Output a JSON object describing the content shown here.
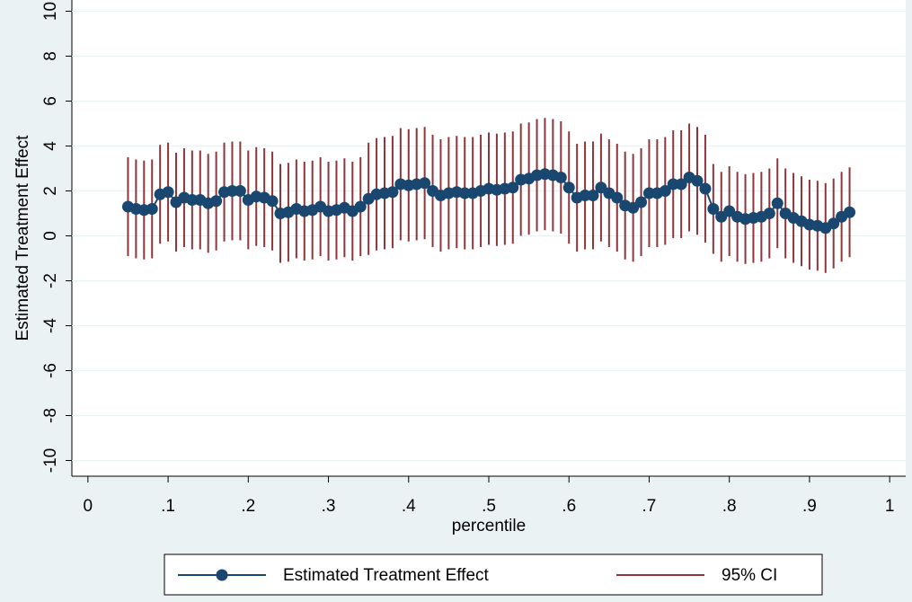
{
  "chart_data": {
    "type": "line-ci",
    "x_label": "percentile",
    "y_label": "Estimated Treatment Effect",
    "x": [
      0.05,
      0.06,
      0.07,
      0.08,
      0.09,
      0.1,
      0.11,
      0.12,
      0.13,
      0.14,
      0.15,
      0.16,
      0.17,
      0.18,
      0.19,
      0.2,
      0.21,
      0.22,
      0.23,
      0.24,
      0.25,
      0.26,
      0.27,
      0.28,
      0.29,
      0.3,
      0.31,
      0.32,
      0.33,
      0.34,
      0.35,
      0.36,
      0.37,
      0.38,
      0.39,
      0.4,
      0.41,
      0.42,
      0.43,
      0.44,
      0.45,
      0.46,
      0.47,
      0.48,
      0.49,
      0.5,
      0.51,
      0.52,
      0.53,
      0.54,
      0.55,
      0.56,
      0.57,
      0.58,
      0.59,
      0.6,
      0.61,
      0.62,
      0.63,
      0.64,
      0.65,
      0.66,
      0.67,
      0.68,
      0.69,
      0.7,
      0.71,
      0.72,
      0.73,
      0.74,
      0.75,
      0.76,
      0.77,
      0.78,
      0.79,
      0.8,
      0.81,
      0.82,
      0.83,
      0.84,
      0.85,
      0.86,
      0.87,
      0.88,
      0.89,
      0.9,
      0.91,
      0.92,
      0.93,
      0.94,
      0.95
    ],
    "series": [
      {
        "name": "Estimated Treatment Effect",
        "color": "#1a476f",
        "values": [
          1.3,
          1.2,
          1.15,
          1.2,
          1.85,
          1.95,
          1.5,
          1.7,
          1.6,
          1.6,
          1.45,
          1.55,
          1.95,
          2.0,
          2.0,
          1.6,
          1.75,
          1.7,
          1.55,
          1.0,
          1.05,
          1.2,
          1.1,
          1.15,
          1.3,
          1.1,
          1.15,
          1.25,
          1.1,
          1.3,
          1.65,
          1.85,
          1.9,
          1.95,
          2.3,
          2.25,
          2.3,
          2.35,
          2.0,
          1.8,
          1.9,
          1.95,
          1.9,
          1.9,
          2.0,
          2.1,
          2.05,
          2.1,
          2.15,
          2.5,
          2.55,
          2.7,
          2.75,
          2.7,
          2.6,
          2.15,
          1.7,
          1.8,
          1.8,
          2.15,
          1.9,
          1.7,
          1.35,
          1.25,
          1.5,
          1.9,
          1.9,
          2.0,
          2.3,
          2.3,
          2.6,
          2.45,
          2.1,
          1.2,
          0.85,
          1.1,
          0.85,
          0.75,
          0.8,
          0.85,
          1.0,
          1.45,
          1.0,
          0.8,
          0.65,
          0.5,
          0.45,
          0.35,
          0.55,
          0.85,
          1.05
        ]
      },
      {
        "name": "95% CI",
        "color": "#90353b",
        "lower": [
          -0.9,
          -1.0,
          -1.05,
          -1.0,
          -0.35,
          -0.25,
          -0.7,
          -0.5,
          -0.6,
          -0.6,
          -0.75,
          -0.65,
          -0.25,
          -0.2,
          -0.2,
          -0.6,
          -0.45,
          -0.5,
          -0.65,
          -1.2,
          -1.15,
          -1.0,
          -1.1,
          -1.05,
          -0.9,
          -1.1,
          -1.05,
          -0.95,
          -1.1,
          -0.9,
          -0.85,
          -0.65,
          -0.6,
          -0.55,
          -0.2,
          -0.25,
          -0.2,
          -0.15,
          -0.5,
          -0.7,
          -0.6,
          -0.55,
          -0.6,
          -0.6,
          -0.5,
          -0.4,
          -0.45,
          -0.4,
          -0.35,
          0.0,
          0.05,
          0.2,
          0.25,
          0.2,
          0.1,
          -0.35,
          -0.7,
          -0.6,
          -0.6,
          -0.25,
          -0.5,
          -0.7,
          -1.05,
          -1.15,
          -0.9,
          -0.5,
          -0.5,
          -0.4,
          -0.1,
          -0.1,
          0.2,
          0.05,
          -0.3,
          -0.8,
          -1.15,
          -0.9,
          -1.15,
          -1.25,
          -1.2,
          -1.15,
          -1.0,
          -0.55,
          -1.0,
          -1.2,
          -1.35,
          -1.5,
          -1.55,
          -1.65,
          -1.45,
          -1.15,
          -0.95
        ],
        "upper": [
          3.5,
          3.4,
          3.35,
          3.4,
          4.05,
          4.15,
          3.7,
          3.9,
          3.8,
          3.8,
          3.65,
          3.75,
          4.15,
          4.2,
          4.2,
          3.8,
          3.95,
          3.9,
          3.75,
          3.2,
          3.25,
          3.4,
          3.3,
          3.35,
          3.5,
          3.3,
          3.35,
          3.45,
          3.3,
          3.5,
          4.15,
          4.35,
          4.4,
          4.45,
          4.8,
          4.75,
          4.8,
          4.85,
          4.5,
          4.3,
          4.4,
          4.45,
          4.4,
          4.4,
          4.5,
          4.6,
          4.55,
          4.6,
          4.65,
          5.0,
          5.05,
          5.2,
          5.25,
          5.2,
          5.1,
          4.65,
          4.1,
          4.2,
          4.2,
          4.55,
          4.3,
          4.1,
          3.75,
          3.65,
          3.9,
          4.3,
          4.3,
          4.4,
          4.7,
          4.7,
          5.0,
          4.85,
          4.5,
          3.2,
          2.85,
          3.1,
          2.85,
          2.75,
          2.8,
          2.85,
          3.0,
          3.45,
          3.0,
          2.8,
          2.65,
          2.5,
          2.45,
          2.35,
          2.55,
          2.85,
          3.05
        ]
      }
    ],
    "xlim": [
      -0.02,
      1.02
    ],
    "ylim": [
      -10.7,
      10.5
    ],
    "xticks": [
      0,
      {
        "value": 0.1,
        "label": ".1"
      },
      {
        "value": 0.2,
        "label": ".2"
      },
      {
        "value": 0.3,
        "label": ".3"
      },
      {
        "value": 0.4,
        "label": ".4"
      },
      {
        "value": 0.5,
        "label": ".5"
      },
      {
        "value": 0.6,
        "label": ".6"
      },
      {
        "value": 0.7,
        "label": ".7"
      },
      {
        "value": 0.8,
        "label": ".8"
      },
      {
        "value": 0.9,
        "label": ".9"
      },
      1
    ],
    "yticks": [
      -10,
      -8,
      -6,
      -4,
      -2,
      0,
      2,
      4,
      6,
      8,
      10
    ],
    "grid": true
  }
}
